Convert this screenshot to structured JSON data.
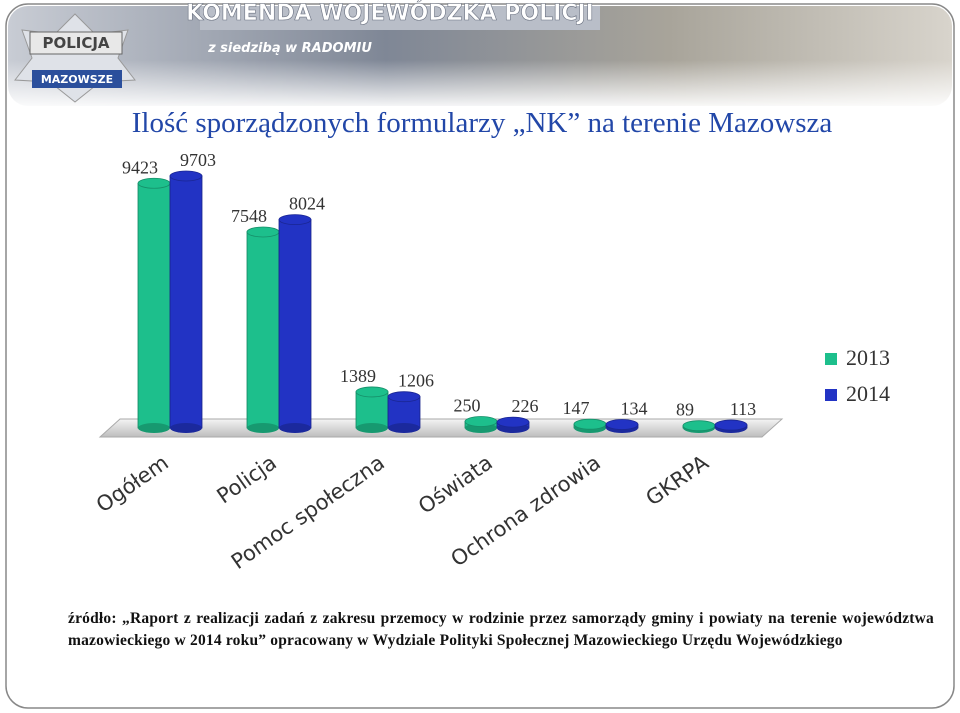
{
  "header": {
    "banner": "KOMENDA WOJEWÓDZKA POLICJI",
    "subtitle": "z siedzibą w RADOMIU",
    "badge_top": "POLICJA",
    "badge_bottom": "MAZOWSZE"
  },
  "chart_data": {
    "type": "bar3d",
    "title": "Ilość sporządzonych formularzy „NK” na terenie Mazowsza",
    "categories": [
      "Ogółem",
      "Policja",
      "Pomoc społeczna",
      "Oświata",
      "Ochrona zdrowia",
      "GKRPA"
    ],
    "series": [
      {
        "name": "2013",
        "color": "#1dbf8c",
        "values": [
          9423,
          7548,
          1389,
          250,
          147,
          89
        ]
      },
      {
        "name": "2014",
        "color": "#2233c4",
        "values": [
          9703,
          8024,
          1206,
          226,
          134,
          113
        ]
      }
    ],
    "legend": "right"
  },
  "source": "źródło: „Raport z realizacji zadań z zakresu przemocy w rodzinie przez samorządy gminy i powiaty na terenie województwa mazowieckiego w 2014 roku” opracowany w Wydziale Polityki Społecznej Mazowieckiego Urzędu Wojewódzkiego"
}
